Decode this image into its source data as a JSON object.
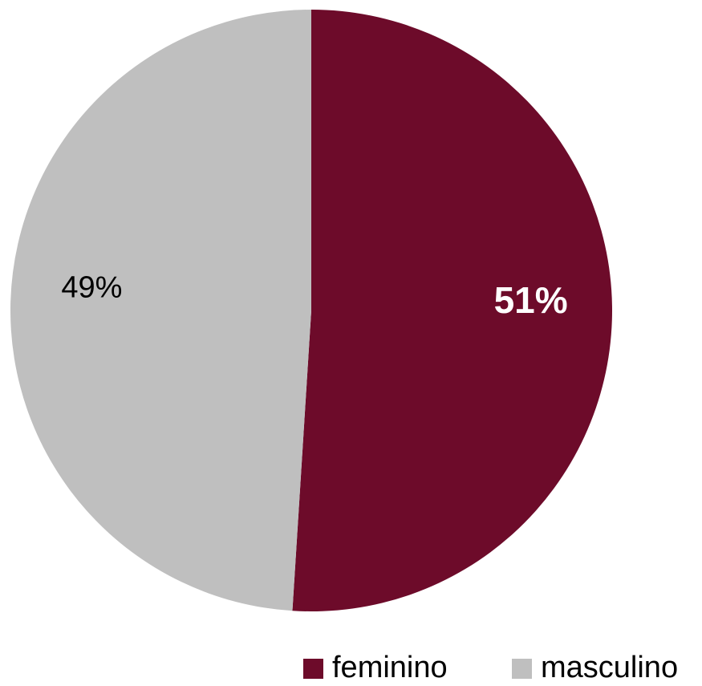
{
  "chart_data": {
    "type": "pie",
    "categories": [
      "feminino",
      "masculino"
    ],
    "values": [
      51,
      49
    ],
    "value_labels": [
      "51%",
      "49%"
    ],
    "colors": [
      "#6d0b2a",
      "#bfbfbf"
    ],
    "legend": "bottom-right"
  }
}
